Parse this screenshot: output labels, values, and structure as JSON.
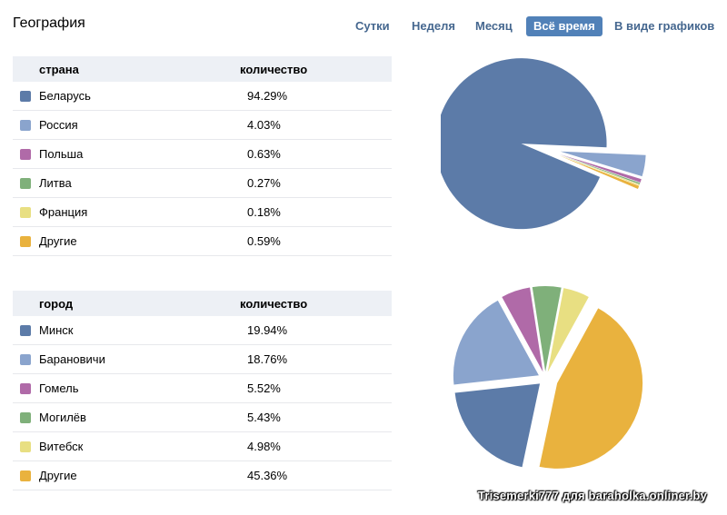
{
  "title": "География",
  "tabs": [
    {
      "label": "Сутки",
      "active": false
    },
    {
      "label": "Неделя",
      "active": false
    },
    {
      "label": "Месяц",
      "active": false
    },
    {
      "label": "Всё время",
      "active": true
    },
    {
      "label": "В виде графиков",
      "active": false
    }
  ],
  "countries": {
    "header_name": "страна",
    "header_value": "количество",
    "rows": [
      {
        "name": "Беларусь",
        "value": "94.29%",
        "color": "#5c7ba8"
      },
      {
        "name": "Россия",
        "value": "4.03%",
        "color": "#8aa4cd"
      },
      {
        "name": "Польша",
        "value": "0.63%",
        "color": "#b06aa8"
      },
      {
        "name": "Литва",
        "value": "0.27%",
        "color": "#7fb07a"
      },
      {
        "name": "Франция",
        "value": "0.18%",
        "color": "#e8df82"
      },
      {
        "name": "Другие",
        "value": "0.59%",
        "color": "#e9b23e"
      }
    ]
  },
  "cities": {
    "header_name": "город",
    "header_value": "количество",
    "rows": [
      {
        "name": "Минск",
        "value": "19.94%",
        "color": "#5c7ba8"
      },
      {
        "name": "Барановичи",
        "value": "18.76%",
        "color": "#8aa4cd"
      },
      {
        "name": "Гомель",
        "value": "5.52%",
        "color": "#b06aa8"
      },
      {
        "name": "Могилёв",
        "value": "5.43%",
        "color": "#7fb07a"
      },
      {
        "name": "Витебск",
        "value": "4.98%",
        "color": "#e8df82"
      },
      {
        "name": "Другие",
        "value": "45.36%",
        "color": "#e9b23e"
      }
    ]
  },
  "chart_data": [
    {
      "type": "pie",
      "categories": [
        "Беларусь",
        "Россия",
        "Польша",
        "Литва",
        "Франция",
        "Другие"
      ],
      "values": [
        94.29,
        4.03,
        0.63,
        0.27,
        0.18,
        0.59
      ],
      "colors": [
        "#5c7ba8",
        "#8aa4cd",
        "#b06aa8",
        "#7fb07a",
        "#e8df82",
        "#e9b23e"
      ]
    },
    {
      "type": "pie",
      "categories": [
        "Минск",
        "Барановичи",
        "Гомель",
        "Могилёв",
        "Витебск",
        "Другие"
      ],
      "values": [
        19.94,
        18.76,
        5.52,
        5.43,
        4.98,
        45.36
      ],
      "colors": [
        "#5c7ba8",
        "#8aa4cd",
        "#b06aa8",
        "#7fb07a",
        "#e8df82",
        "#e9b23e"
      ]
    }
  ],
  "watermark": "Trisemerki777 для baraholka.onliner.by"
}
